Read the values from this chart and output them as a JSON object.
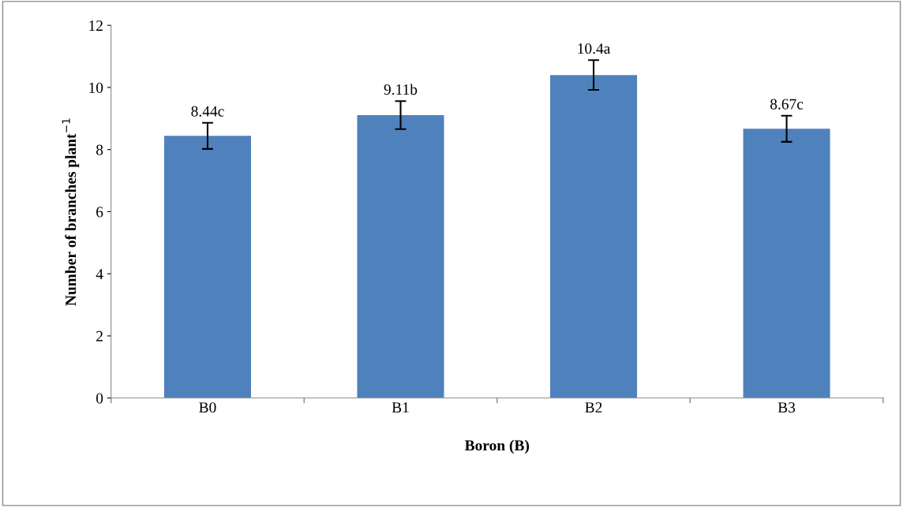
{
  "chart_data": {
    "type": "bar",
    "xlabel": "Boron (B)",
    "ylabel": "Number of branches plant$^{−1}$",
    "categories": [
      "B0",
      "B1",
      "B2",
      "B3"
    ],
    "values": [
      8.44,
      9.11,
      10.4,
      8.67
    ],
    "errors": [
      0.42,
      0.45,
      0.48,
      0.42
    ],
    "value_labels": [
      "8.44c",
      "9.11b",
      "10.4a",
      "8.67c"
    ],
    "color": "#4f81bd",
    "ylim": [
      0,
      12
    ],
    "yticks": [
      0,
      2,
      4,
      6,
      8,
      10,
      12
    ],
    "grid": false,
    "legend": false
  }
}
